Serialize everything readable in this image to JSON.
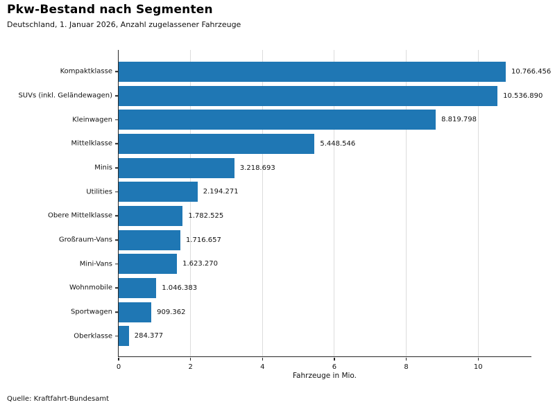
{
  "header": {
    "title": "Pkw-Bestand nach Segmenten",
    "subtitle": "Deutschland, 1. Januar 2026, Anzahl zugelassener Fahrzeuge"
  },
  "footer": {
    "source": "Quelle: Kraftfahrt-Bundesamt"
  },
  "chart_data": {
    "type": "bar",
    "orientation": "horizontal",
    "title": "Pkw-Bestand nach Segmenten",
    "subtitle": "Deutschland, 1. Januar 2026, Anzahl zugelassener Fahrzeuge",
    "categories": [
      "Kompaktklasse",
      "SUVs (inkl. Geländewagen)",
      "Kleinwagen",
      "Mittelklasse",
      "Minis",
      "Utilities",
      "Obere Mittelklasse",
      "Großraum-Vans",
      "Mini-Vans",
      "Wohnmobile",
      "Sportwagen",
      "Oberklasse"
    ],
    "values": [
      10766456,
      10536890,
      8819798,
      5448546,
      3218693,
      2194271,
      1782525,
      1716657,
      1623270,
      1046383,
      909362,
      284377
    ],
    "value_labels": [
      "10.766.456",
      "10.536.890",
      "8.819.798",
      "5.448.546",
      "3.218.693",
      "2.194.271",
      "1.782.525",
      "1.716.657",
      "1.623.270",
      "1.046.383",
      "909.362",
      "284.377"
    ],
    "xlabel": "Fahrzeuge in Mio.",
    "ylabel": "",
    "x_ticks": [
      0,
      2,
      4,
      6,
      8,
      10
    ],
    "x_tick_labels": [
      "0",
      "2",
      "4",
      "6",
      "8",
      "10"
    ],
    "xlim": [
      0,
      11.5
    ],
    "unit_divisor": 1000000,
    "grid": true,
    "legend_position": "none",
    "bar_color": "#1f77b4",
    "gridline_color": "#dcdcdc",
    "axis_color": "#262626",
    "source": "Quelle: Kraftfahrt-Bundesamt"
  }
}
